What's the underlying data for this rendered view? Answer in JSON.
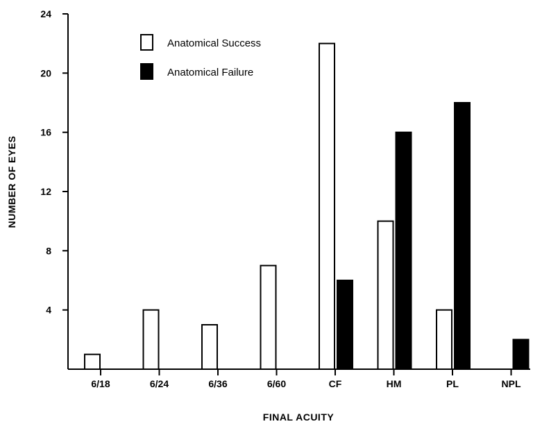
{
  "chart_data": {
    "type": "bar",
    "title": "",
    "xlabel": "FINAL ACUITY",
    "ylabel": "NUMBER OF EYES",
    "ylim": [
      0,
      24
    ],
    "yticks": [
      4,
      8,
      12,
      16,
      20,
      24
    ],
    "categories": [
      "6/18",
      "6/24",
      "6/36",
      "6/60",
      "CF",
      "HM",
      "PL",
      "NPL"
    ],
    "series": [
      {
        "name": "Anatomical Success",
        "color": "#ffffff",
        "values": [
          1,
          4,
          3,
          7,
          22,
          10,
          4,
          0
        ]
      },
      {
        "name": "Anatomical Failure",
        "color": "#000000",
        "values": [
          0,
          0,
          0,
          0,
          6,
          16,
          18,
          2
        ]
      }
    ],
    "grid": false,
    "legend_position": "top-left"
  }
}
